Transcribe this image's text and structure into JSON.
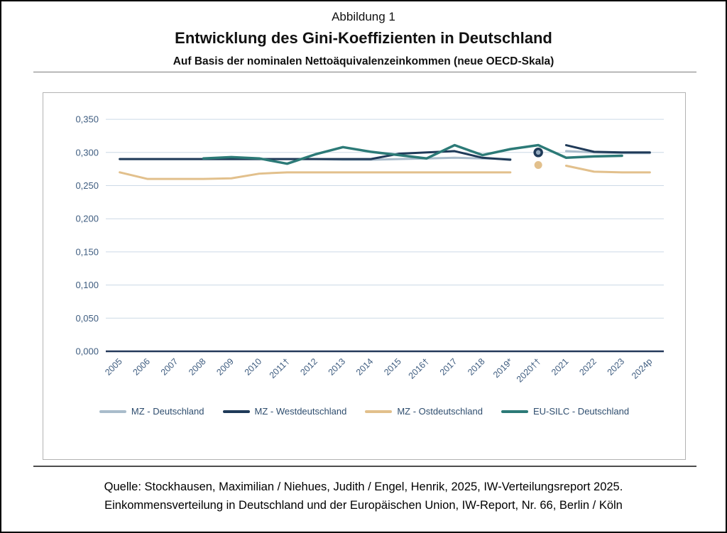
{
  "figure": {
    "label": "Abbildung 1",
    "title": "Entwicklung des Gini-Koeffizienten in Deutschland",
    "subtitle": "Auf Basis der nominalen Nettoäquivalenzeinkommen (neue OECD-Skala)"
  },
  "source": {
    "line1": "Quelle: Stockhausen, Maximilian / Niehues, Judith / Engel, Henrik, 2025, IW-Verteilungsreport 2025.",
    "line2": "Einkommensverteilung in Deutschland und der Europäischen Union, IW-Report, Nr. 66, Berlin / Köln"
  },
  "colors": {
    "axis_labels": "#3f5d80",
    "legend_text": "#2e4d6e",
    "gridline": "#ccd9e6",
    "axis_line": "#24395a",
    "frame_border": "#b3b3b3"
  },
  "chart_data": {
    "type": "line",
    "title": "Entwicklung des Gini-Koeffizienten in Deutschland",
    "xlabel": "",
    "ylabel": "",
    "ylim": [
      0,
      0.35
    ],
    "grid": true,
    "legend_position": "bottom",
    "yticks": [
      {
        "value": 0.0,
        "label": "0,000"
      },
      {
        "value": 0.05,
        "label": "0,050"
      },
      {
        "value": 0.1,
        "label": "0,100"
      },
      {
        "value": 0.15,
        "label": "0,150"
      },
      {
        "value": 0.2,
        "label": "0,200"
      },
      {
        "value": 0.25,
        "label": "0,250"
      },
      {
        "value": 0.3,
        "label": "0,300"
      },
      {
        "value": 0.35,
        "label": "0,350"
      }
    ],
    "categories": [
      "2005",
      "2006",
      "2007",
      "2008",
      "2009",
      "2010",
      "2011†",
      "2012",
      "2013",
      "2014",
      "2015",
      "2016†",
      "2017",
      "2018",
      "2019*",
      "2020††",
      "2021",
      "2022",
      "2023",
      "2024p"
    ],
    "series": [
      {
        "id": "mz-deutschland",
        "name": "MZ - Deutschland",
        "color": "#a9bccb",
        "line_width": 3,
        "values": [
          0.29,
          0.29,
          0.29,
          0.29,
          0.29,
          0.29,
          0.29,
          0.29,
          0.289,
          0.289,
          0.29,
          0.291,
          0.292,
          0.291,
          0.29,
          0.3,
          0.302,
          0.3,
          0.299,
          0.299
        ],
        "isolated_points": [
          15
        ],
        "marker": {
          "type": "circle",
          "r": 4.5,
          "fill": "#a9bccb"
        }
      },
      {
        "id": "mz-westdeutschland",
        "name": "MZ - Westdeutschland",
        "color": "#1f3a58",
        "line_width": 3,
        "values": [
          0.29,
          0.29,
          0.29,
          0.29,
          0.29,
          0.29,
          0.29,
          0.29,
          0.29,
          0.29,
          0.298,
          0.3,
          0.302,
          0.292,
          0.289,
          0.3,
          0.311,
          0.301,
          0.3,
          0.3
        ],
        "isolated_points": [
          15
        ],
        "marker": {
          "type": "ring",
          "r": 5,
          "fill": "#93a9be",
          "stroke": "#1f3a58",
          "stroke_width": 3.5
        }
      },
      {
        "id": "mz-ostdeutschland",
        "name": "MZ - Ostdeutschland",
        "color": "#e2c08c",
        "line_width": 3,
        "values": [
          0.27,
          0.26,
          0.26,
          0.26,
          0.261,
          0.268,
          0.27,
          0.27,
          0.27,
          0.27,
          0.27,
          0.27,
          0.27,
          0.27,
          0.27,
          0.281,
          0.28,
          0.271,
          0.27,
          0.27
        ],
        "isolated_points": [
          15
        ],
        "marker": {
          "type": "circle",
          "r": 5.5,
          "fill": "#e2c08c"
        }
      },
      {
        "id": "eu-silc-deutschland",
        "name": "EU-SILC - Deutschland",
        "color": "#2c7a77",
        "line_width": 3.5,
        "values": [
          null,
          null,
          null,
          0.291,
          0.293,
          0.291,
          0.283,
          0.297,
          0.308,
          0.301,
          0.296,
          0.291,
          0.311,
          0.296,
          0.305,
          0.311,
          0.292,
          0.294,
          0.295,
          null
        ],
        "isolated_points": [],
        "marker": null
      }
    ]
  }
}
